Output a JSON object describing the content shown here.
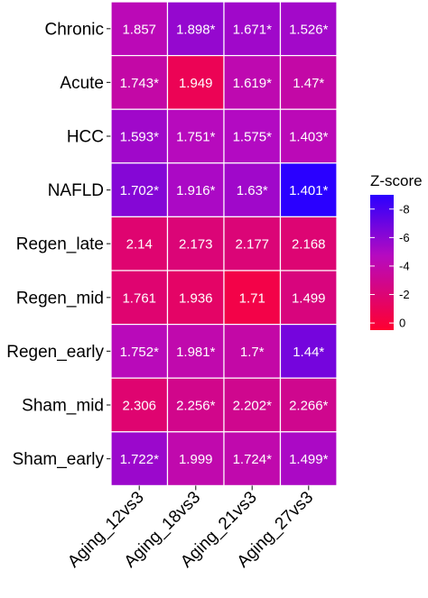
{
  "chart_data": {
    "type": "heatmap",
    "rows": [
      "Chronic",
      "Acute",
      "HCC",
      "NAFLD",
      "Regen_late",
      "Regen_mid",
      "Regen_early",
      "Sham_mid",
      "Sham_early"
    ],
    "columns": [
      "Aging_12vs3",
      "Aging_18vs3",
      "Aging_21vs3",
      "Aging_27vs3"
    ],
    "cells": [
      [
        {
          "label": "1.857",
          "z": -3.5
        },
        {
          "label": "1.898*",
          "z": -5.0
        },
        {
          "label": "1.671*",
          "z": -4.6
        },
        {
          "label": "1.526*",
          "z": -4.5
        }
      ],
      [
        {
          "label": "1.743*",
          "z": -3.0
        },
        {
          "label": "1.949",
          "z": -0.6
        },
        {
          "label": "1.619*",
          "z": -3.3
        },
        {
          "label": "1.47*",
          "z": -3.0
        }
      ],
      [
        {
          "label": "1.593*",
          "z": -4.6
        },
        {
          "label": "1.751*",
          "z": -3.7
        },
        {
          "label": "1.575*",
          "z": -3.9
        },
        {
          "label": "1.403*",
          "z": -3.5
        }
      ],
      [
        {
          "label": "1.702*",
          "z": -5.6
        },
        {
          "label": "1.916*",
          "z": -4.2
        },
        {
          "label": "1.63*",
          "z": -4.6
        },
        {
          "label": "1.401*",
          "z": -9.0
        }
      ],
      [
        {
          "label": "2.14",
          "z": -1.4
        },
        {
          "label": "2.173",
          "z": -1.6
        },
        {
          "label": "2.177",
          "z": -1.6
        },
        {
          "label": "2.168",
          "z": -1.5
        }
      ],
      [
        {
          "label": "1.761",
          "z": -1.4
        },
        {
          "label": "1.936",
          "z": -1.1
        },
        {
          "label": "1.71",
          "z": -0.2
        },
        {
          "label": "1.499",
          "z": -1.8
        }
      ],
      [
        {
          "label": "1.752*",
          "z": -3.6
        },
        {
          "label": "1.981*",
          "z": -3.2
        },
        {
          "label": "1.7*",
          "z": -3.0
        },
        {
          "label": "1.44*",
          "z": -6.2
        }
      ],
      [
        {
          "label": "2.306",
          "z": -1.4
        },
        {
          "label": "2.256*",
          "z": -2.2
        },
        {
          "label": "2.202*",
          "z": -2.3
        },
        {
          "label": "2.266*",
          "z": -2.3
        }
      ],
      [
        {
          "label": "1.722*",
          "z": -4.8
        },
        {
          "label": "1.999",
          "z": -3.2
        },
        {
          "label": "1.724*",
          "z": -3.2
        },
        {
          "label": "1.499*",
          "z": -4.2
        }
      ]
    ],
    "legend": {
      "title": "Z-score",
      "ticks": [
        "-8",
        "-6",
        "-4",
        "-2",
        "0"
      ],
      "tick_values": [
        -8,
        -6,
        -4,
        -2,
        0
      ],
      "range": [
        -9,
        0.5
      ],
      "placement": "right"
    },
    "colors": {
      "low": "#2a00ff",
      "mid": "#b60ac0",
      "high": "#ff0030",
      "cell_border": "#ffffff",
      "cell_text": "#ffffff"
    }
  }
}
